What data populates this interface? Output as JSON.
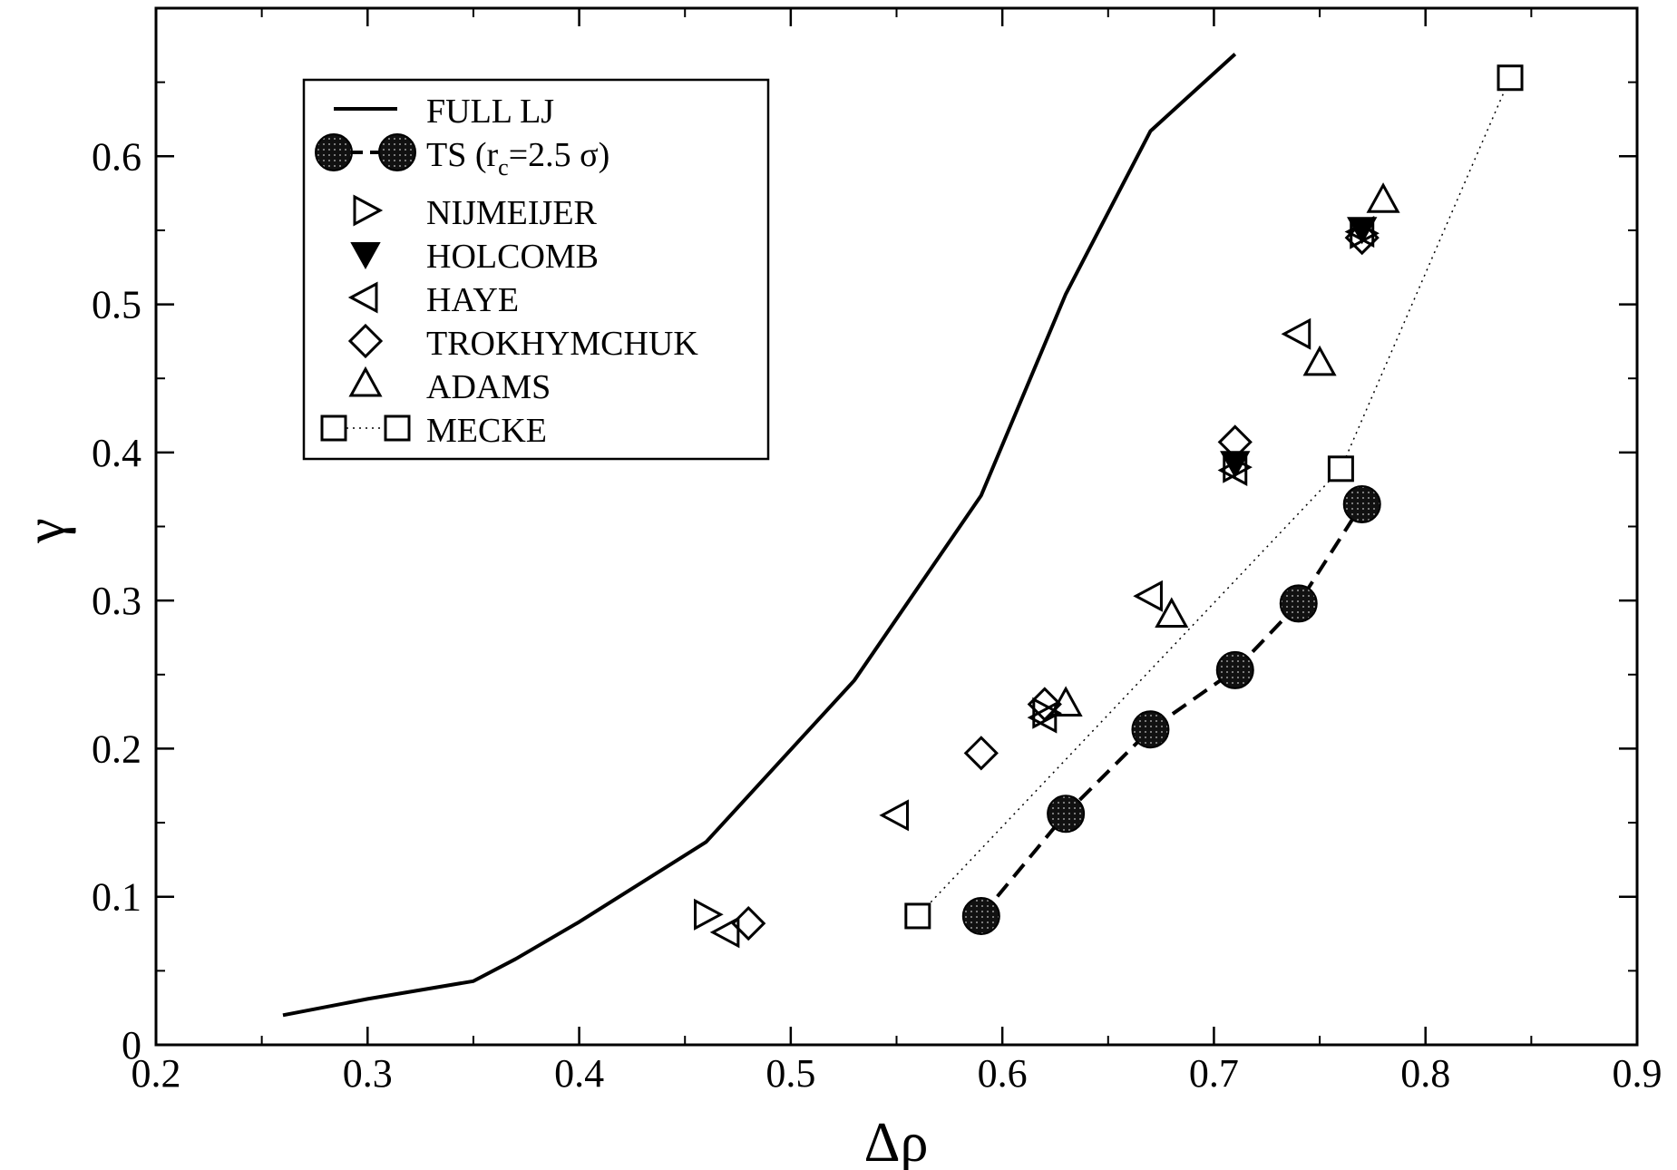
{
  "chart_data": {
    "type": "scatter",
    "xlabel": "Δρ",
    "ylabel": "γ",
    "xlim": [
      0.2,
      0.9
    ],
    "ylim": [
      0,
      0.7
    ],
    "x_ticks": [
      "0.2",
      "0.3",
      "0.4",
      "0.5",
      "0.6",
      "0.7",
      "0.8",
      "0.9"
    ],
    "y_ticks": [
      "0",
      "0.1",
      "0.2",
      "0.3",
      "0.4",
      "0.5",
      "0.6"
    ],
    "grid": false,
    "legend_position": "top-left",
    "series": [
      {
        "name": "FULL LJ",
        "style": "solid-line",
        "points": [
          [
            0.26,
            0.02
          ],
          [
            0.3,
            0.031
          ],
          [
            0.35,
            0.043
          ],
          [
            0.37,
            0.058
          ],
          [
            0.4,
            0.083
          ],
          [
            0.46,
            0.137
          ],
          [
            0.53,
            0.246
          ],
          [
            0.59,
            0.371
          ],
          [
            0.63,
            0.507
          ],
          [
            0.67,
            0.617
          ],
          [
            0.71,
            0.669
          ]
        ]
      },
      {
        "name": "TS (r",
        "name_subscript": "c",
        "name_suffix": "=2.5 σ)",
        "style": "filled-circle-dashed",
        "points": [
          [
            0.59,
            0.087
          ],
          [
            0.63,
            0.156
          ],
          [
            0.67,
            0.213
          ],
          [
            0.71,
            0.253
          ],
          [
            0.74,
            0.298
          ],
          [
            0.77,
            0.365
          ]
        ]
      },
      {
        "name": "NIJMEIJER",
        "style": "triangle-right",
        "points": [
          [
            0.46,
            0.088
          ],
          [
            0.62,
            0.224
          ],
          [
            0.71,
            0.39
          ],
          [
            0.77,
            0.548
          ]
        ]
      },
      {
        "name": "HOLCOMB",
        "style": "triangle-down-filled",
        "points": [
          [
            0.71,
            0.393
          ],
          [
            0.77,
            0.551
          ]
        ]
      },
      {
        "name": "HAYE",
        "style": "triangle-left",
        "points": [
          [
            0.47,
            0.076
          ],
          [
            0.55,
            0.155
          ],
          [
            0.62,
            0.221
          ],
          [
            0.67,
            0.303
          ],
          [
            0.71,
            0.388
          ],
          [
            0.74,
            0.48
          ],
          [
            0.77,
            0.549
          ]
        ]
      },
      {
        "name": "TROKHYMCHUK",
        "style": "diamond",
        "points": [
          [
            0.48,
            0.082
          ],
          [
            0.59,
            0.197
          ],
          [
            0.62,
            0.23
          ],
          [
            0.71,
            0.407
          ],
          [
            0.77,
            0.545
          ]
        ]
      },
      {
        "name": "ADAMS",
        "style": "triangle-up",
        "points": [
          [
            0.63,
            0.23
          ],
          [
            0.68,
            0.29
          ],
          [
            0.75,
            0.46
          ],
          [
            0.78,
            0.57
          ]
        ]
      },
      {
        "name": "MECKE",
        "style": "square-dotted",
        "points": [
          [
            0.56,
            0.087
          ],
          [
            0.76,
            0.389
          ],
          [
            0.84,
            0.653
          ]
        ]
      }
    ]
  }
}
